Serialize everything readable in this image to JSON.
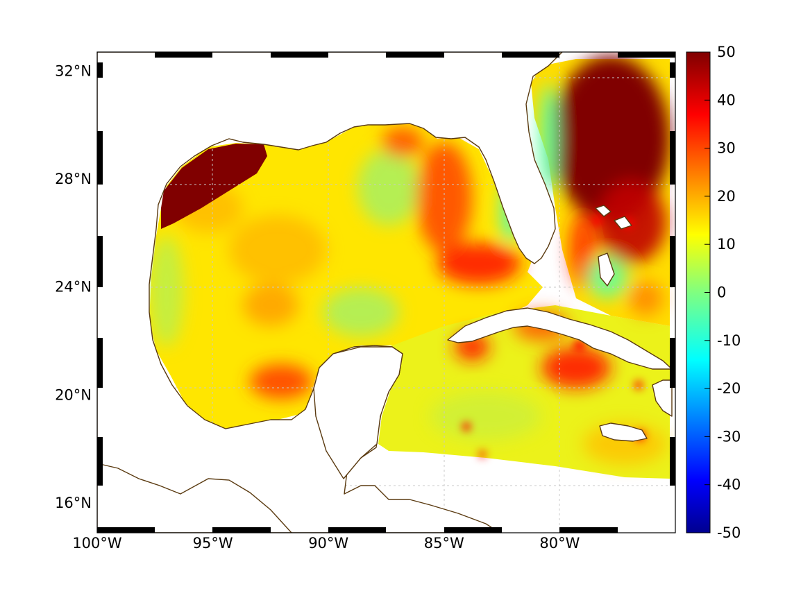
{
  "map": {
    "type": "heatmap",
    "title": "",
    "xlabel": "",
    "ylabel": "",
    "lon_range": [
      -100,
      -75
    ],
    "lat_range": [
      14.9,
      32.7
    ],
    "x_tick_labels": [
      {
        "lon": -100,
        "label": "100°W"
      },
      {
        "lon": -95,
        "label": "95°W"
      },
      {
        "lon": -90,
        "label": "90°W"
      },
      {
        "lon": -85,
        "label": "85°W"
      },
      {
        "lon": -80,
        "label": "80°W"
      }
    ],
    "y_tick_labels": [
      {
        "lat": 16,
        "label": "16°N"
      },
      {
        "lat": 20,
        "label": "20°N"
      },
      {
        "lat": 24,
        "label": "24°N"
      },
      {
        "lat": 28,
        "label": "28°N"
      },
      {
        "lat": 32,
        "label": "32°N"
      }
    ],
    "grid": true,
    "colorbar": {
      "placement": "right",
      "colormap": "jet",
      "range": [
        -50,
        50
      ],
      "ticks": [
        "50",
        "40",
        "30",
        "20",
        "10",
        "0",
        "-10",
        "-20",
        "-30",
        "-40",
        "-50"
      ]
    },
    "colors": {
      "coastline": "#5a3a10",
      "high": "#800000",
      "mid": "#ffff00",
      "zero": "#80ff80",
      "low": "#00008f"
    }
  }
}
